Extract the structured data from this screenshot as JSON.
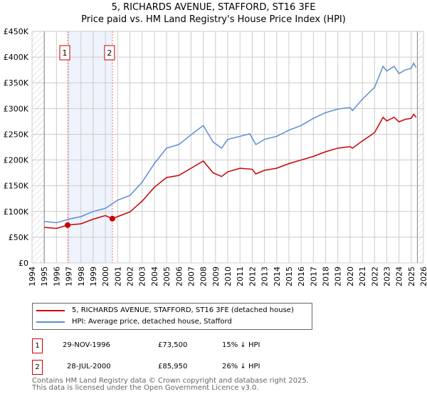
{
  "title": "5, RICHARDS AVENUE, STAFFORD, ST16 3FE",
  "subtitle": "Price paid vs. HM Land Registry's House Price Index (HPI)",
  "chart_data": {
    "type": "line",
    "title": "5, RICHARDS AVENUE, STAFFORD, ST16 3FE",
    "subtitle": "Price paid vs. HM Land Registry's House Price Index (HPI)",
    "xlim": [
      1994,
      2026
    ],
    "ylim": [
      0,
      450000
    ],
    "x_ticks": [
      "1994",
      "1995",
      "1996",
      "1997",
      "1998",
      "1999",
      "2000",
      "2001",
      "2002",
      "2003",
      "2004",
      "2005",
      "2006",
      "2007",
      "2008",
      "2009",
      "2010",
      "2011",
      "2012",
      "2013",
      "2014",
      "2015",
      "2016",
      "2017",
      "2018",
      "2019",
      "2020",
      "2021",
      "2022",
      "2023",
      "2024",
      "2025",
      "2026"
    ],
    "y_ticks": [
      {
        "v": 0,
        "label": "£0"
      },
      {
        "v": 50000,
        "label": "£50K"
      },
      {
        "v": 100000,
        "label": "£100K"
      },
      {
        "v": 150000,
        "label": "£150K"
      },
      {
        "v": 200000,
        "label": "£200K"
      },
      {
        "v": 250000,
        "label": "£250K"
      },
      {
        "v": 300000,
        "label": "£300K"
      },
      {
        "v": 350000,
        "label": "£350K"
      },
      {
        "v": 400000,
        "label": "£400K"
      },
      {
        "v": 450000,
        "label": "£450K"
      }
    ],
    "grid": true,
    "series": [
      {
        "name": "5, RICHARDS AVENUE, STAFFORD, ST16 3FE (detached house)",
        "color": "#cc0000",
        "x": [
          1995,
          1996,
          1996.91,
          1998,
          1999,
          2000,
          2000.57,
          2001,
          2002,
          2003,
          2004,
          2005,
          2006,
          2007,
          2008,
          2008.8,
          2009.5,
          2010,
          2011,
          2012,
          2012.3,
          2013,
          2014,
          2015,
          2016,
          2017,
          2018,
          2019,
          2020,
          2020.2,
          2021,
          2022,
          2022.7,
          2023,
          2023.6,
          2024,
          2024.5,
          2025,
          2025.2,
          2025.4
        ],
        "y": [
          69000,
          67000,
          73500,
          76000,
          85000,
          92000,
          85950,
          90000,
          99000,
          120000,
          147000,
          166000,
          170000,
          184000,
          198000,
          175000,
          168000,
          177000,
          184000,
          182000,
          173000,
          180000,
          184000,
          193000,
          200000,
          207000,
          216000,
          223000,
          226000,
          223000,
          237000,
          253000,
          283000,
          276000,
          283000,
          274000,
          279000,
          281000,
          289000,
          283000
        ]
      },
      {
        "name": "HPI: Average price, detached house, Stafford",
        "color": "#5b8dd0",
        "x": [
          1995,
          1996,
          1997,
          1998,
          1999,
          2000,
          2001,
          2002,
          2003,
          2004,
          2005,
          2006,
          2007,
          2008,
          2008.8,
          2009.5,
          2010,
          2011,
          2011.8,
          2012.3,
          2013,
          2014,
          2015,
          2016,
          2017,
          2018,
          2019,
          2020,
          2020.2,
          2021,
          2022,
          2022.7,
          2023,
          2023.6,
          2024,
          2024.5,
          2025,
          2025.2,
          2025.4
        ],
        "y": [
          80600,
          78000,
          85000,
          90000,
          100000,
          106000,
          122000,
          131000,
          157000,
          193000,
          223000,
          230000,
          249000,
          267000,
          235000,
          223000,
          240000,
          246000,
          251000,
          230000,
          240000,
          246000,
          258000,
          267000,
          281000,
          292000,
          299000,
          302000,
          296000,
          318000,
          341000,
          382000,
          373000,
          382000,
          368000,
          375000,
          378000,
          388000,
          380000
        ]
      }
    ],
    "sales": [
      {
        "id": "1",
        "x": 1996.91,
        "y": 73500
      },
      {
        "id": "2",
        "x": 2000.57,
        "y": 85950
      }
    ],
    "legend_placement": "below"
  },
  "legend": {
    "property": "5, RICHARDS AVENUE, STAFFORD, ST16 3FE (detached house)",
    "hpi": "HPI: Average price, detached house, Stafford"
  },
  "transactions": [
    {
      "id": "1",
      "date": "29-NOV-1996",
      "price": "£73,500",
      "hpi": "15% ↓ HPI"
    },
    {
      "id": "2",
      "date": "28-JUL-2000",
      "price": "£85,950",
      "hpi": "26% ↓ HPI"
    }
  ],
  "footer": {
    "line1": "Contains HM Land Registry data © Crown copyright and database right 2025.",
    "line2": "This data is licensed under the Open Government Licence v3.0."
  }
}
